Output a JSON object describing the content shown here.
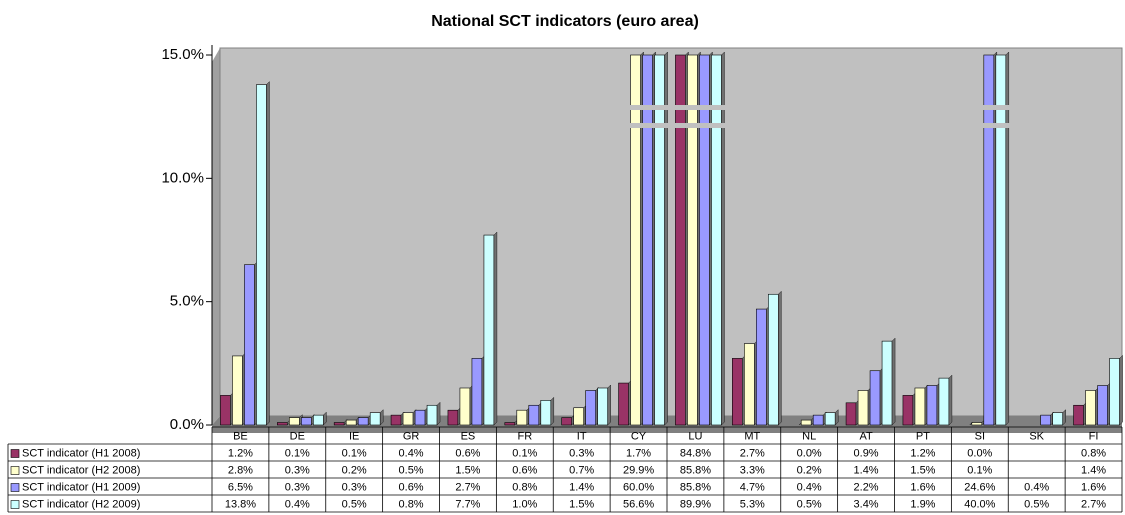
{
  "chart_data": {
    "type": "bar",
    "title": "National SCT indicators (euro area)",
    "categories": [
      "BE",
      "DE",
      "IE",
      "GR",
      "ES",
      "FR",
      "IT",
      "CY",
      "LU",
      "MT",
      "NL",
      "AT",
      "PT",
      "SI",
      "SK",
      "FI"
    ],
    "ylim": [
      0,
      15
    ],
    "yticks": [
      {
        "value": 0,
        "label": "0.0%"
      },
      {
        "value": 5,
        "label": "5.0%"
      },
      {
        "value": 10,
        "label": "10.0%"
      },
      {
        "value": 15,
        "label": "15.0%"
      }
    ],
    "series": [
      {
        "name": "SCT indicator (H1 2008)",
        "color": "#993366",
        "values": [
          1.2,
          0.1,
          0.1,
          0.4,
          0.6,
          0.1,
          0.3,
          1.7,
          84.8,
          2.7,
          0.0,
          0.9,
          1.2,
          0.0,
          null,
          0.8
        ],
        "value_labels": [
          "1.2%",
          "0.1%",
          "0.1%",
          "0.4%",
          "0.6%",
          "0.1%",
          "0.3%",
          "1.7%",
          "84.8%",
          "2.7%",
          "0.0%",
          "0.9%",
          "1.2%",
          "0.0%",
          null,
          "0.8%"
        ]
      },
      {
        "name": "SCT indicator (H2 2008)",
        "color": "#ffffcc",
        "values": [
          2.8,
          0.3,
          0.2,
          0.5,
          1.5,
          0.6,
          0.7,
          29.9,
          85.8,
          3.3,
          0.2,
          1.4,
          1.5,
          0.1,
          null,
          1.4
        ],
        "value_labels": [
          "2.8%",
          "0.3%",
          "0.2%",
          "0.5%",
          "1.5%",
          "0.6%",
          "0.7%",
          "29.9%",
          "85.8%",
          "3.3%",
          "0.2%",
          "1.4%",
          "1.5%",
          "0.1%",
          null,
          "1.4%"
        ]
      },
      {
        "name": "SCT indicator (H1 2009)",
        "color": "#9999ff",
        "values": [
          6.5,
          0.3,
          0.3,
          0.6,
          2.7,
          0.8,
          1.4,
          60.0,
          85.8,
          4.7,
          0.4,
          2.2,
          1.6,
          24.6,
          0.4,
          1.6
        ],
        "value_labels": [
          "6.5%",
          "0.3%",
          "0.3%",
          "0.6%",
          "2.7%",
          "0.8%",
          "1.4%",
          "60.0%",
          "85.8%",
          "4.7%",
          "0.4%",
          "2.2%",
          "1.6%",
          "24.6%",
          "0.4%",
          "1.6%"
        ]
      },
      {
        "name": "SCT indicator (H2 2009)",
        "color": "#ccffff",
        "values": [
          13.8,
          0.4,
          0.5,
          0.8,
          7.7,
          1.0,
          1.5,
          56.6,
          89.9,
          5.3,
          0.5,
          3.4,
          1.9,
          40.0,
          0.5,
          2.7
        ],
        "value_labels": [
          "13.8%",
          "0.4%",
          "0.5%",
          "0.8%",
          "7.7%",
          "1.0%",
          "1.5%",
          "56.6%",
          "89.9%",
          "5.3%",
          "0.5%",
          "3.4%",
          "1.9%",
          "40.0%",
          "0.5%",
          "2.7%"
        ]
      }
    ]
  }
}
